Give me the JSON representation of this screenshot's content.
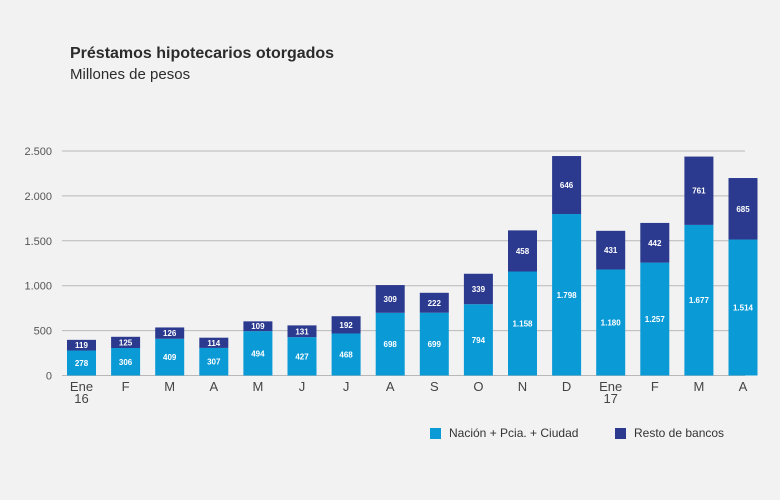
{
  "chart_data": {
    "type": "bar",
    "stacked": true,
    "title": "Préstamos hipotecarios otorgados",
    "subtitle": "Millones de pesos",
    "categories": [
      [
        "Ene",
        "16"
      ],
      [
        "F"
      ],
      [
        "M"
      ],
      [
        "A"
      ],
      [
        "M"
      ],
      [
        "J"
      ],
      [
        "J"
      ],
      [
        "A"
      ],
      [
        "S"
      ],
      [
        "O"
      ],
      [
        "N"
      ],
      [
        "D"
      ],
      [
        "Ene",
        "17"
      ],
      [
        "F"
      ],
      [
        "M"
      ],
      [
        "A"
      ]
    ],
    "series": [
      {
        "name": "Nación + Pcia. + Ciudad",
        "color": "#0a9ad6",
        "values": [
          278,
          306,
          409,
          307,
          494,
          427,
          468,
          698,
          699,
          794,
          1158,
          1798,
          1180,
          1257,
          1677,
          1514
        ],
        "labels": [
          "278",
          "306",
          "409",
          "307",
          "494",
          "427",
          "468",
          "698",
          "699",
          "794",
          "1.158",
          "1.798",
          "1.180",
          "1.257",
          "1.677",
          "1.514"
        ]
      },
      {
        "name": "Resto de bancos",
        "color": "#2b3a8f",
        "values": [
          119,
          125,
          126,
          114,
          109,
          131,
          192,
          309,
          222,
          339,
          458,
          646,
          431,
          442,
          761,
          685
        ],
        "labels": [
          "119",
          "125",
          "126",
          "114",
          "109",
          "131",
          "192",
          "309",
          "222",
          "339",
          "458",
          "646",
          "431",
          "442",
          "761",
          "685"
        ]
      }
    ],
    "ylim": [
      0,
      2500
    ],
    "yticks": [
      0,
      500,
      1000,
      1500,
      2000,
      2500
    ],
    "ytick_labels": [
      "0",
      "500",
      "1.000",
      "1.500",
      "2.000",
      "2.500"
    ],
    "grid": true,
    "legend_position": "bottom-right"
  }
}
